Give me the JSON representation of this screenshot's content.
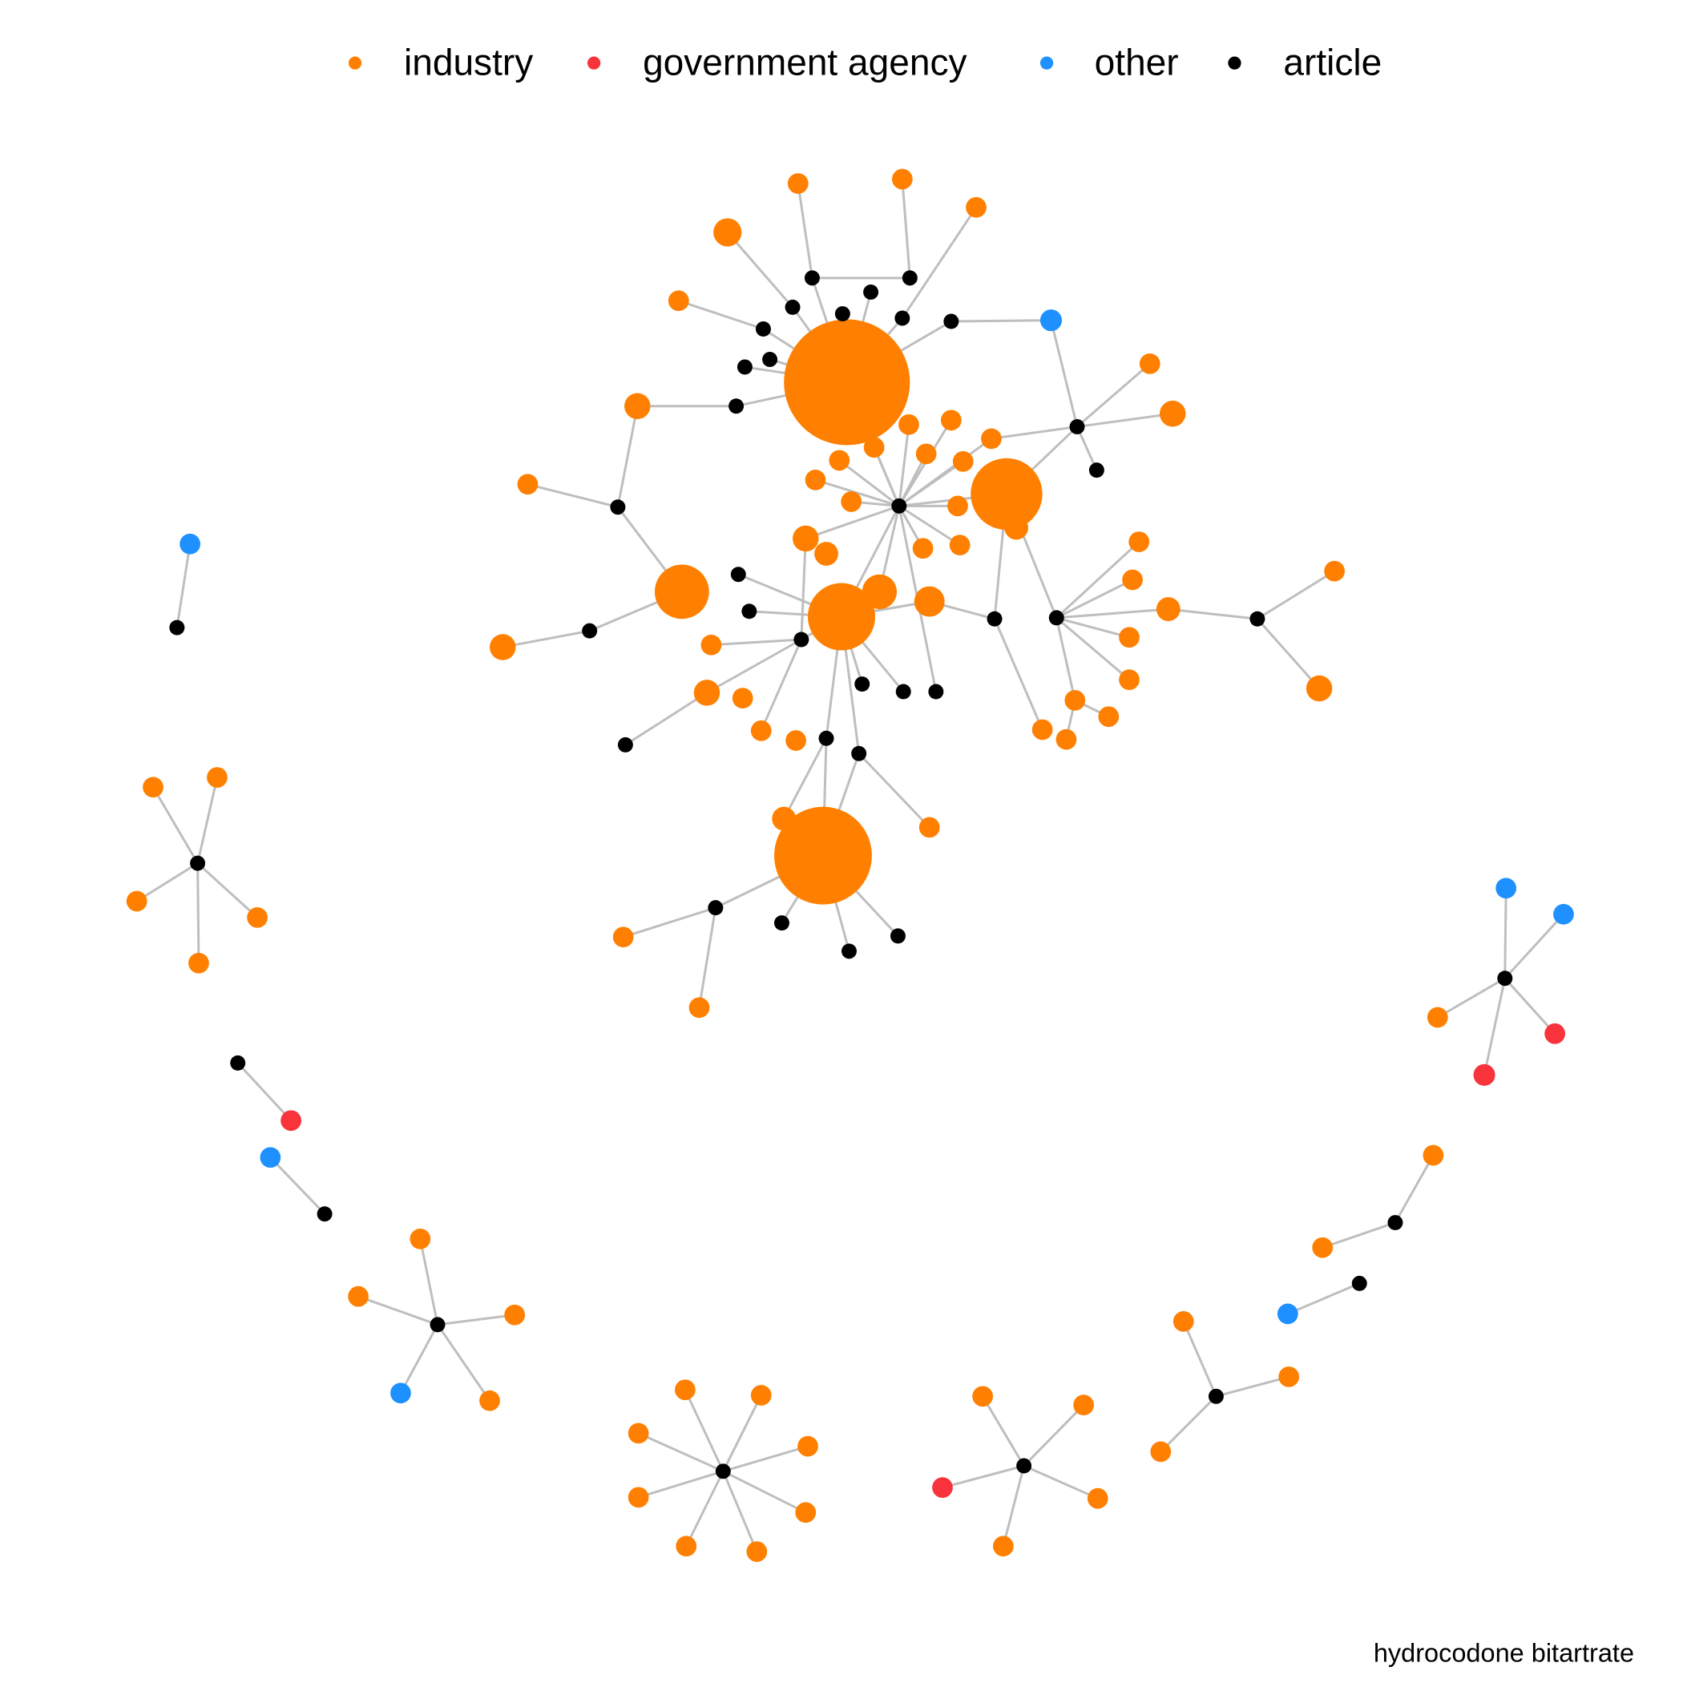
{
  "legend": {
    "items": [
      {
        "label": "industry",
        "color": "#ff8000"
      },
      {
        "label": "government agency",
        "color": "#f8333c"
      },
      {
        "label": "other",
        "color": "#1e90ff"
      },
      {
        "label": "article",
        "color": "#000000"
      }
    ]
  },
  "caption": "hydrocodone bitartrate"
}
